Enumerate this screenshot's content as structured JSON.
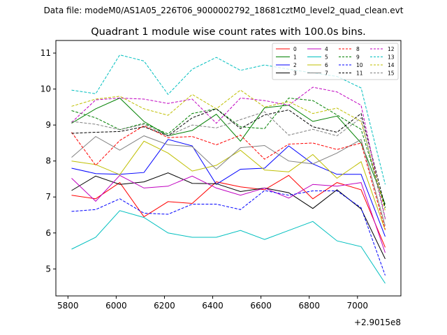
{
  "chart_data": {
    "type": "line",
    "suptitle": "Data file: modeM0/AS1A05_226T06_9000002792_18681cztM0_level2_quad_clean.evt",
    "title": "Quadrant 1 module wise count rates with 100.0s bins.",
    "xlabel": "",
    "ylabel": "",
    "x_offset_label": "+2.9015e8",
    "x": [
      5815,
      5915,
      6015,
      6115,
      6215,
      6315,
      6415,
      6515,
      6615,
      6715,
      6815,
      6915,
      7015,
      7115
    ],
    "xlim": [
      5750,
      7180
    ],
    "ylim": [
      4.25,
      11.35
    ],
    "xticks": [
      5800,
      6000,
      6200,
      6400,
      6600,
      6800,
      7000
    ],
    "xtick_labels": [
      "5800",
      "6000",
      "6200",
      "6400",
      "6600",
      "6800",
      "7000"
    ],
    "yticks": [
      5,
      6,
      7,
      8,
      9,
      10,
      11
    ],
    "ytick_labels": [
      "5",
      "6",
      "7",
      "8",
      "9",
      "10",
      "11"
    ],
    "legend_position": "top-right",
    "legend_columns": 4,
    "series": [
      {
        "name": "0",
        "color": "#ff0000",
        "dashed": false,
        "values": [
          7.05,
          6.95,
          7.4,
          6.45,
          6.87,
          6.82,
          7.42,
          7.28,
          7.2,
          7.6,
          6.95,
          7.4,
          7.2,
          5.6
        ]
      },
      {
        "name": "1",
        "color": "#008000",
        "dashed": false,
        "values": [
          9.05,
          9.45,
          9.75,
          9.1,
          8.7,
          8.85,
          9.3,
          8.55,
          9.48,
          9.55,
          9.1,
          9.25,
          8.5,
          6.8
        ]
      },
      {
        "name": "2",
        "color": "#0000ff",
        "dashed": false,
        "values": [
          7.8,
          7.65,
          7.63,
          7.68,
          8.6,
          8.42,
          7.35,
          7.77,
          7.8,
          8.42,
          7.92,
          7.63,
          7.63,
          5.9
        ]
      },
      {
        "name": "3",
        "color": "#000000",
        "dashed": false,
        "values": [
          7.18,
          7.58,
          7.35,
          7.42,
          7.67,
          7.38,
          7.37,
          7.15,
          7.25,
          7.12,
          6.68,
          7.2,
          6.67,
          5.28
        ]
      },
      {
        "name": "4",
        "color": "#c000c0",
        "dashed": false,
        "values": [
          7.52,
          6.88,
          7.6,
          7.25,
          7.3,
          7.58,
          7.25,
          7.05,
          7.25,
          6.97,
          7.35,
          7.3,
          7.4,
          5.45
        ]
      },
      {
        "name": "5",
        "color": "#00bfbf",
        "dashed": false,
        "values": [
          5.55,
          5.88,
          6.62,
          6.43,
          6.0,
          5.88,
          5.88,
          6.07,
          5.82,
          6.07,
          6.32,
          5.78,
          5.62,
          4.6
        ]
      },
      {
        "name": "6",
        "color": "#bfbf00",
        "dashed": false,
        "values": [
          8.0,
          7.9,
          7.62,
          8.55,
          8.22,
          7.72,
          7.88,
          8.3,
          7.75,
          7.7,
          8.18,
          7.52,
          7.98,
          6.08
        ]
      },
      {
        "name": "7",
        "color": "#808080",
        "dashed": false,
        "values": [
          8.1,
          8.68,
          8.3,
          8.7,
          8.45,
          8.4,
          7.77,
          8.37,
          8.43,
          8.0,
          7.92,
          8.22,
          8.6,
          6.2
        ]
      },
      {
        "name": "8",
        "color": "#ff0000",
        "dashed": true,
        "values": [
          8.8,
          7.88,
          8.57,
          8.98,
          8.65,
          8.68,
          8.45,
          8.72,
          8.05,
          8.47,
          8.5,
          8.32,
          8.5,
          6.1
        ]
      },
      {
        "name": "9",
        "color": "#008000",
        "dashed": true,
        "values": [
          9.4,
          9.2,
          8.87,
          9.05,
          8.75,
          9.32,
          9.45,
          8.95,
          8.9,
          9.75,
          9.68,
          9.28,
          8.88,
          6.7
        ]
      },
      {
        "name": "10",
        "color": "#0000ff",
        "dashed": true,
        "values": [
          6.6,
          6.65,
          6.95,
          6.55,
          6.52,
          6.8,
          6.8,
          6.65,
          7.18,
          7.05,
          7.17,
          7.17,
          6.7,
          4.82
        ]
      },
      {
        "name": "11",
        "color": "#000000",
        "dashed": true,
        "values": [
          8.77,
          8.8,
          8.82,
          8.95,
          8.7,
          9.2,
          9.45,
          8.9,
          9.28,
          9.42,
          8.95,
          8.8,
          9.32,
          6.72
        ]
      },
      {
        "name": "12",
        "color": "#c000c0",
        "dashed": true,
        "values": [
          9.07,
          9.7,
          9.75,
          9.72,
          9.6,
          9.72,
          9.05,
          9.75,
          9.68,
          9.55,
          10.05,
          9.92,
          9.55,
          6.4
        ]
      },
      {
        "name": "13",
        "color": "#00bfbf",
        "dashed": true,
        "values": [
          9.97,
          9.87,
          10.95,
          10.78,
          9.85,
          10.55,
          10.88,
          10.52,
          10.67,
          10.55,
          10.45,
          10.35,
          10.03,
          7.35
        ]
      },
      {
        "name": "14",
        "color": "#bfbf00",
        "dashed": true,
        "values": [
          9.52,
          9.72,
          9.8,
          9.45,
          9.27,
          9.85,
          9.45,
          9.97,
          9.5,
          9.65,
          9.32,
          9.47,
          9.1,
          6.62
        ]
      },
      {
        "name": "15",
        "color": "#808080",
        "dashed": true,
        "values": [
          9.1,
          9.02,
          8.87,
          9.02,
          8.7,
          9.0,
          8.92,
          9.15,
          9.37,
          8.72,
          8.88,
          8.7,
          9.2,
          6.38
        ]
      }
    ]
  }
}
